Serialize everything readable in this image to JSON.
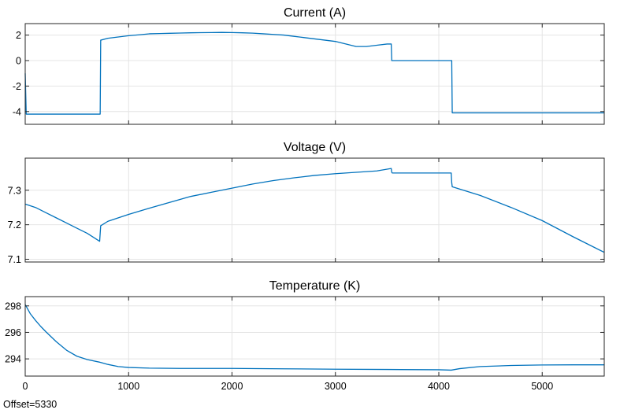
{
  "offset_label": "Offset=5330",
  "chart_data": [
    {
      "type": "line",
      "title": "Current (A)",
      "xlim": [
        0,
        5600
      ],
      "ylim": [
        -5,
        2.9
      ],
      "xticks": [
        1000,
        2000,
        3000,
        4000,
        5000
      ],
      "yticks": [
        2,
        0,
        -2,
        -4
      ],
      "xtick_labels_shown": false,
      "grid": true,
      "color": "#0072BD",
      "x": [
        0,
        10,
        20,
        720,
        725,
        730,
        800,
        900,
        1000,
        1100,
        1200,
        1300,
        1400,
        1500,
        1600,
        1700,
        1800,
        1900,
        2000,
        2100,
        2200,
        2300,
        2400,
        2500,
        2600,
        2700,
        2800,
        2900,
        3000,
        3100,
        3200,
        3300,
        3400,
        3500,
        3540,
        3545,
        3550,
        4120,
        4125,
        4130,
        5600
      ],
      "values": [
        -1.0,
        -4.2,
        -4.2,
        -4.2,
        -4.2,
        1.6,
        1.75,
        1.85,
        1.95,
        2.02,
        2.1,
        2.12,
        2.14,
        2.16,
        2.18,
        2.19,
        2.2,
        2.21,
        2.2,
        2.18,
        2.15,
        2.1,
        2.05,
        2.0,
        1.9,
        1.8,
        1.7,
        1.6,
        1.5,
        1.3,
        1.1,
        1.1,
        1.2,
        1.3,
        1.3,
        0.0,
        0.0,
        0.0,
        0.0,
        -4.1,
        -4.1
      ]
    },
    {
      "type": "line",
      "title": "Voltage (V)",
      "xlim": [
        0,
        5600
      ],
      "ylim": [
        7.092,
        7.393
      ],
      "xticks": [
        1000,
        2000,
        3000,
        4000,
        5000
      ],
      "yticks": [
        7.3,
        7.2,
        7.1
      ],
      "xtick_labels_shown": false,
      "grid": true,
      "color": "#0072BD",
      "x": [
        0,
        100,
        200,
        300,
        400,
        500,
        600,
        720,
        725,
        730,
        800,
        900,
        1000,
        1200,
        1400,
        1600,
        1800,
        2000,
        2200,
        2400,
        2600,
        2800,
        3000,
        3200,
        3400,
        3540,
        3545,
        3550,
        3700,
        3900,
        4120,
        4125,
        4130,
        4400,
        4700,
        5000,
        5300,
        5600
      ],
      "values": [
        7.26,
        7.25,
        7.235,
        7.22,
        7.205,
        7.19,
        7.175,
        7.152,
        7.175,
        7.197,
        7.21,
        7.22,
        7.23,
        7.248,
        7.265,
        7.282,
        7.294,
        7.306,
        7.318,
        7.328,
        7.336,
        7.343,
        7.348,
        7.352,
        7.356,
        7.363,
        7.352,
        7.35,
        7.35,
        7.35,
        7.35,
        7.322,
        7.31,
        7.285,
        7.25,
        7.212,
        7.165,
        7.12
      ]
    },
    {
      "type": "line",
      "title": "Temperature (K)",
      "xlim": [
        0,
        5600
      ],
      "ylim": [
        292.7,
        298.7
      ],
      "xticks": [
        0,
        1000,
        2000,
        3000,
        4000,
        5000
      ],
      "yticks": [
        298,
        296,
        294
      ],
      "grid": true,
      "color": "#0072BD",
      "x": [
        0,
        50,
        100,
        150,
        200,
        300,
        400,
        500,
        600,
        720,
        800,
        900,
        1000,
        1200,
        1500,
        2000,
        2500,
        3000,
        3500,
        4000,
        4120,
        4200,
        4400,
        4700,
        5000,
        5300,
        5600
      ],
      "values": [
        298.1,
        297.4,
        296.9,
        296.45,
        296.05,
        295.3,
        294.65,
        294.2,
        293.95,
        293.75,
        293.58,
        293.42,
        293.35,
        293.3,
        293.28,
        293.28,
        293.25,
        293.22,
        293.2,
        293.18,
        293.15,
        293.26,
        293.42,
        293.5,
        293.54,
        293.55,
        293.55
      ]
    }
  ]
}
